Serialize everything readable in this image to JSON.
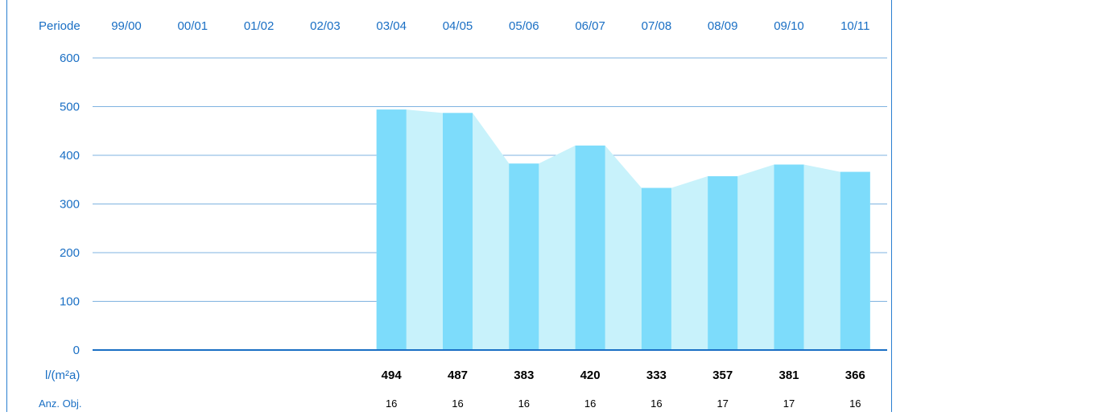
{
  "chart_data": {
    "type": "bar",
    "period_label": "Periode",
    "categories": [
      "99/00",
      "00/01",
      "01/02",
      "02/03",
      "03/04",
      "04/05",
      "05/06",
      "06/07",
      "07/08",
      "08/09",
      "09/10",
      "10/11"
    ],
    "values": [
      null,
      null,
      null,
      null,
      494,
      487,
      383,
      420,
      333,
      357,
      381,
      366
    ],
    "counts": [
      null,
      null,
      null,
      null,
      16,
      16,
      16,
      16,
      16,
      17,
      17,
      16
    ],
    "value_row_label": "l/(m²a)",
    "count_row_label": "Anz. Obj.",
    "yticks": [
      "0",
      "100",
      "200",
      "300",
      "400",
      "500",
      "600"
    ],
    "ylim": [
      0,
      600
    ],
    "grid": true,
    "colors": {
      "bar": "#7ddcfb",
      "area": "#c8f2fb",
      "axis_text": "#1a6fc4",
      "grid": "#7fb3e0",
      "baseline": "#1a6fc4",
      "frame": "#2a7fd0",
      "value_text": "#000000"
    }
  }
}
